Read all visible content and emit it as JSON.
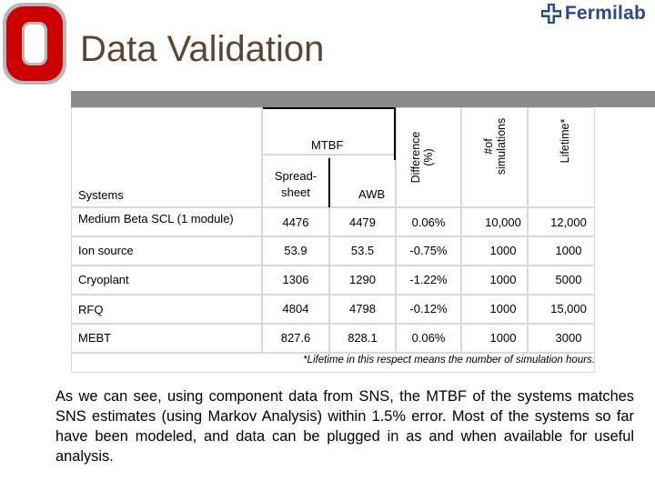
{
  "header": {
    "title": "Data Validation",
    "brand_name": "Fermilab",
    "brand_icon": "fermilab-logo-icon",
    "logo_icon": "block-o-logo-icon",
    "colors": {
      "title": "#5b4636",
      "logo_red": "#cc0000",
      "brand_blue": "#2a4a8a"
    }
  },
  "table": {
    "headers": {
      "systems": "Systems",
      "mtbf": "MTBF",
      "spreadsheet": "Spread-sheet",
      "awb": "AWB",
      "difference_line1": "Difference",
      "difference_line2": "(%)",
      "simulations_line1": "#of",
      "simulations_line2": "simulations",
      "lifetime": "Lifetime*"
    },
    "rows": [
      {
        "system": "Medium Beta SCL (1 module)",
        "spreadsheet": "4476",
        "awb": "4479",
        "difference": "0.06%",
        "simulations": "10,000",
        "lifetime": "12,000"
      },
      {
        "system": "Ion source",
        "spreadsheet": "53.9",
        "awb": "53.5",
        "difference": "-0.75%",
        "simulations": "1000",
        "lifetime": "1000"
      },
      {
        "system": "Cryoplant",
        "spreadsheet": "1306",
        "awb": "1290",
        "difference": "-1.22%",
        "simulations": "1000",
        "lifetime": "5000"
      },
      {
        "system": "RFQ",
        "spreadsheet": "4804",
        "awb": "4798",
        "difference": "-0.12%",
        "simulations": "1000",
        "lifetime": "15,000"
      },
      {
        "system": "MEBT",
        "spreadsheet": "827.6",
        "awb": "828.1",
        "difference": "0.06%",
        "simulations": "1000",
        "lifetime": "3000"
      }
    ],
    "footnote": "*Lifetime in this respect means the number of simulation hours."
  },
  "body_text": "As we can see,  using component data from SNS, the MTBF of the systems matches SNS estimates (using Markov Analysis)  within 1.5% error. Most of the systems so far have been modeled, and  data can be plugged in as and when available for useful analysis."
}
